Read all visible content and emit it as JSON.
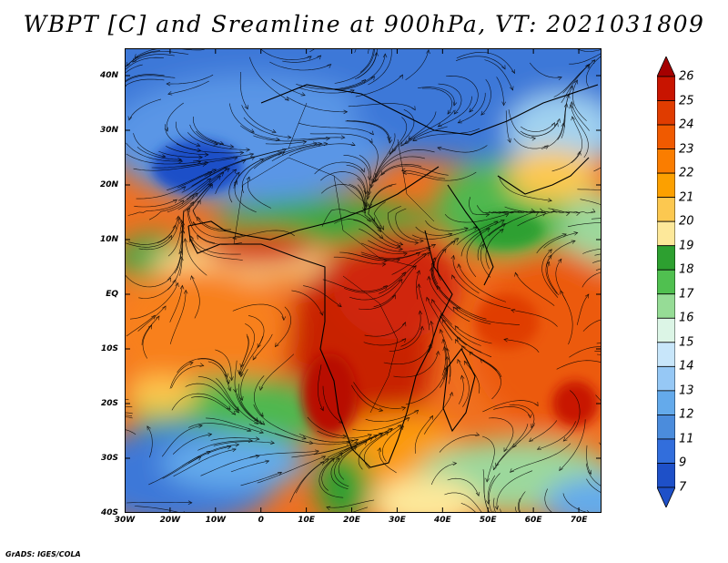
{
  "title": "WBPT [C] and Sreamline at 900hPa, VT: 2021031809",
  "credit": "GrADS: IGES/COLA",
  "map": {
    "lat_labels": [
      "40N",
      "30N",
      "20N",
      "10N",
      "EQ",
      "10S",
      "20S",
      "30S",
      "40S"
    ],
    "lat_values": [
      40,
      30,
      20,
      10,
      0,
      -10,
      -20,
      -30,
      -40
    ],
    "lon_labels": [
      "30W",
      "20W",
      "10W",
      "0",
      "10E",
      "20E",
      "30E",
      "40E",
      "50E",
      "60E",
      "70E"
    ],
    "lon_values": [
      -30,
      -20,
      -10,
      0,
      10,
      20,
      30,
      40,
      50,
      60,
      70
    ],
    "lon_range": [
      -30,
      75
    ],
    "lat_range": [
      -40,
      45
    ]
  },
  "colorbar": {
    "labels": [
      "26",
      "25",
      "24",
      "23",
      "22",
      "21",
      "20",
      "19",
      "18",
      "17",
      "16",
      "15",
      "14",
      "13",
      "12",
      "11",
      "9",
      "7"
    ],
    "colors": [
      "#a50000",
      "#c81400",
      "#e03c00",
      "#f05a00",
      "#fa7d00",
      "#fca000",
      "#fcc850",
      "#fde89a",
      "#2da030",
      "#50c050",
      "#96dc96",
      "#dcf5e6",
      "#c8e6fa",
      "#96c8f5",
      "#64aaeb",
      "#4b8cdc",
      "#326edc",
      "#1e50c8",
      "#1e50c8"
    ]
  }
}
